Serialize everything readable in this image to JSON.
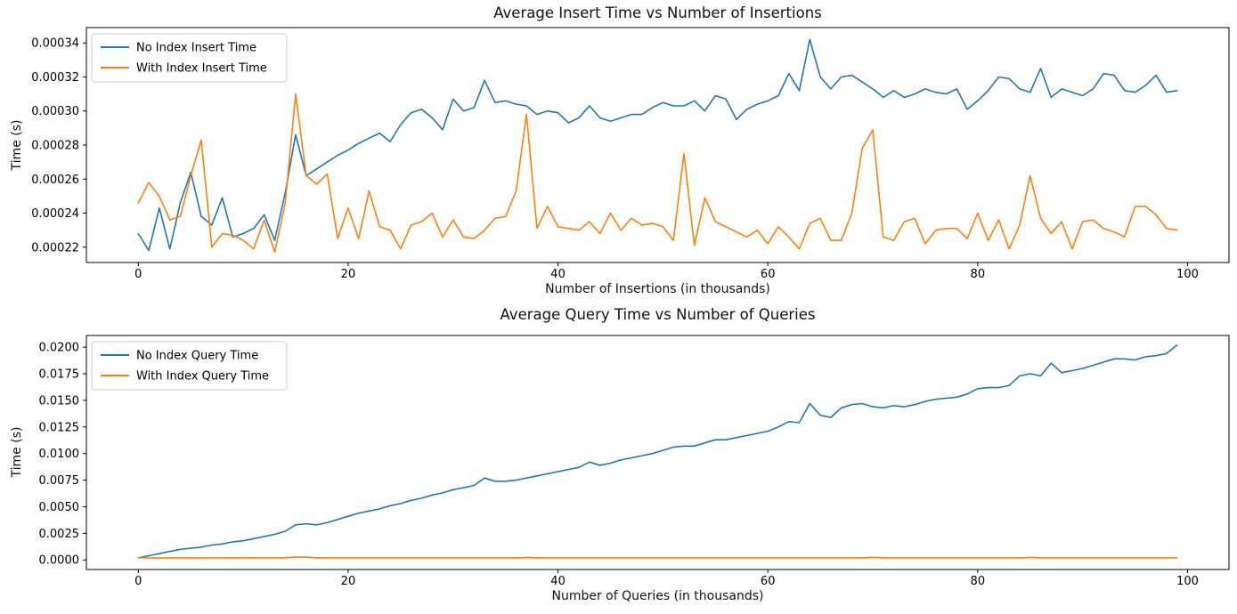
{
  "figure": {
    "background": "#ffffff"
  },
  "colors": {
    "no_index": "#1f77b4",
    "with_index": "#ff7f0e",
    "axis": "#000000",
    "legend_border": "#cccccc",
    "legend_bg": "#ffffff"
  },
  "chart_data": [
    {
      "type": "line",
      "title": "Average Insert Time vs Number of Insertions",
      "xlabel": "Number of Insertions (in thousands)",
      "ylabel": "Time (s)",
      "grid": false,
      "legend_position": "upper left",
      "xlim": [
        -4.95,
        103.95
      ],
      "ylim": [
        0.000211,
        0.000349
      ],
      "xticks": [
        0,
        20,
        40,
        60,
        80,
        100
      ],
      "xtick_labels": [
        "0",
        "20",
        "40",
        "60",
        "80",
        "100"
      ],
      "yticks": [
        0.00022,
        0.00024,
        0.00026,
        0.00028,
        0.0003,
        0.00032,
        0.00034
      ],
      "ytick_labels": [
        "0.00022",
        "0.00024",
        "0.00026",
        "0.00028",
        "0.00030",
        "0.00032",
        "0.00034"
      ],
      "x_start": 0,
      "x_step": 1,
      "series": [
        {
          "name": "No Index Insert Time",
          "color": "#1f77b4",
          "values": [
            0.000228,
            0.000218,
            0.000243,
            0.000219,
            0.000246,
            0.000264,
            0.000238,
            0.000233,
            0.000249,
            0.000226,
            0.000228,
            0.000231,
            0.000239,
            0.000224,
            0.000252,
            0.000286,
            0.000262,
            0.000266,
            0.00027,
            0.000274,
            0.000277,
            0.000281,
            0.000284,
            0.000287,
            0.000282,
            0.000292,
            0.000299,
            0.000301,
            0.000296,
            0.000289,
            0.000307,
            0.0003,
            0.000302,
            0.000318,
            0.000305,
            0.000306,
            0.000304,
            0.000303,
            0.000298,
            0.0003,
            0.000299,
            0.000293,
            0.000296,
            0.000303,
            0.000296,
            0.000294,
            0.000296,
            0.000298,
            0.000298,
            0.000302,
            0.000305,
            0.000303,
            0.000303,
            0.000306,
            0.0003,
            0.000309,
            0.000307,
            0.000295,
            0.000301,
            0.000304,
            0.000306,
            0.000309,
            0.000322,
            0.000312,
            0.000342,
            0.00032,
            0.000313,
            0.00032,
            0.000321,
            0.000317,
            0.000313,
            0.000308,
            0.000312,
            0.000308,
            0.00031,
            0.000313,
            0.000311,
            0.00031,
            0.000313,
            0.000301,
            0.000306,
            0.000312,
            0.00032,
            0.000319,
            0.000313,
            0.000311,
            0.000325,
            0.000308,
            0.000313,
            0.000311,
            0.000309,
            0.000313,
            0.000322,
            0.000321,
            0.000312,
            0.000311,
            0.000315,
            0.000321,
            0.000311,
            0.000312
          ]
        },
        {
          "name": "With Index Insert Time",
          "color": "#ff7f0e",
          "values": [
            0.000246,
            0.000258,
            0.00025,
            0.000236,
            0.000238,
            0.000262,
            0.000283,
            0.00022,
            0.000228,
            0.000227,
            0.000224,
            0.000219,
            0.000236,
            0.000217,
            0.000246,
            0.00031,
            0.000262,
            0.000257,
            0.000263,
            0.000225,
            0.000243,
            0.000225,
            0.000253,
            0.000232,
            0.00023,
            0.000219,
            0.000233,
            0.000235,
            0.00024,
            0.000226,
            0.000236,
            0.000226,
            0.000225,
            0.00023,
            0.000237,
            0.000238,
            0.000253,
            0.000298,
            0.000231,
            0.000244,
            0.000232,
            0.000231,
            0.00023,
            0.000235,
            0.000228,
            0.00024,
            0.00023,
            0.000237,
            0.000233,
            0.000234,
            0.000232,
            0.000224,
            0.000275,
            0.000221,
            0.000249,
            0.000235,
            0.000232,
            0.000229,
            0.000226,
            0.00023,
            0.000222,
            0.000232,
            0.000226,
            0.000219,
            0.000234,
            0.000237,
            0.000224,
            0.000224,
            0.00024,
            0.000278,
            0.000289,
            0.000226,
            0.000224,
            0.000235,
            0.000237,
            0.000222,
            0.00023,
            0.000231,
            0.000231,
            0.000225,
            0.00024,
            0.000224,
            0.000236,
            0.000219,
            0.000233,
            0.000262,
            0.000237,
            0.000228,
            0.000235,
            0.000219,
            0.000235,
            0.000236,
            0.000231,
            0.000229,
            0.000226,
            0.000244,
            0.000244,
            0.000239,
            0.000231,
            0.00023
          ]
        }
      ]
    },
    {
      "type": "line",
      "title": "Average Query Time vs Number of Queries",
      "xlabel": "Number of Queries (in thousands)",
      "ylabel": "Time (s)",
      "grid": false,
      "legend_position": "upper left",
      "xlim": [
        -4.95,
        103.95
      ],
      "ylim": [
        -0.0009,
        0.0211
      ],
      "xticks": [
        0,
        20,
        40,
        60,
        80,
        100
      ],
      "xtick_labels": [
        "0",
        "20",
        "40",
        "60",
        "80",
        "100"
      ],
      "yticks": [
        0.0,
        0.0025,
        0.005,
        0.0075,
        0.01,
        0.0125,
        0.015,
        0.0175,
        0.02
      ],
      "ytick_labels": [
        "0.0000",
        "0.0025",
        "0.0050",
        "0.0075",
        "0.0100",
        "0.0125",
        "0.0150",
        "0.0175",
        "0.0200"
      ],
      "x_start": 0,
      "x_step": 1,
      "series": [
        {
          "name": "No Index Query Time",
          "color": "#1f77b4",
          "values": [
            0.0002,
            0.0004,
            0.0006,
            0.0008,
            0.001,
            0.0011,
            0.0012,
            0.0014,
            0.0015,
            0.0017,
            0.0018,
            0.002,
            0.0022,
            0.0024,
            0.0027,
            0.0033,
            0.0034,
            0.0033,
            0.0035,
            0.0038,
            0.0041,
            0.0044,
            0.0046,
            0.0048,
            0.0051,
            0.0053,
            0.0056,
            0.0058,
            0.0061,
            0.0063,
            0.0066,
            0.0068,
            0.007,
            0.0077,
            0.0074,
            0.0074,
            0.0075,
            0.0077,
            0.0079,
            0.0081,
            0.0083,
            0.0085,
            0.0087,
            0.0092,
            0.0089,
            0.0091,
            0.0094,
            0.0096,
            0.0098,
            0.01,
            0.0103,
            0.0106,
            0.0107,
            0.0107,
            0.011,
            0.0113,
            0.0113,
            0.0115,
            0.0117,
            0.0119,
            0.0121,
            0.0125,
            0.013,
            0.0129,
            0.0147,
            0.0136,
            0.0134,
            0.0143,
            0.0146,
            0.0147,
            0.0144,
            0.0143,
            0.0145,
            0.0144,
            0.0146,
            0.0149,
            0.0151,
            0.0152,
            0.0153,
            0.0156,
            0.0161,
            0.0162,
            0.0162,
            0.0164,
            0.0173,
            0.0175,
            0.0173,
            0.0185,
            0.0176,
            0.0178,
            0.018,
            0.0183,
            0.0186,
            0.0189,
            0.0189,
            0.0188,
            0.0191,
            0.0192,
            0.0194,
            0.0202
          ]
        },
        {
          "name": "With Index Query Time",
          "color": "#ff7f0e",
          "values": [
            0.0002,
            0.0002,
            0.0002,
            0.0002,
            0.0002,
            0.0002,
            0.0002,
            0.0002,
            0.0002,
            0.0002,
            0.0002,
            0.0002,
            0.0002,
            0.0002,
            0.0002,
            0.00028,
            0.00026,
            0.0002,
            0.0002,
            0.0002,
            0.0002,
            0.0002,
            0.0002,
            0.0002,
            0.0002,
            0.0002,
            0.0002,
            0.0002,
            0.0002,
            0.0002,
            0.0002,
            0.0002,
            0.0002,
            0.0002,
            0.0002,
            0.0002,
            0.0002,
            0.00024,
            0.0002,
            0.0002,
            0.0002,
            0.0002,
            0.0002,
            0.0002,
            0.0002,
            0.0002,
            0.0002,
            0.0002,
            0.0002,
            0.0002,
            0.0002,
            0.0002,
            0.0002,
            0.0002,
            0.0002,
            0.0002,
            0.0002,
            0.0002,
            0.0002,
            0.0002,
            0.0002,
            0.0002,
            0.0002,
            0.0002,
            0.0002,
            0.0002,
            0.0002,
            0.0002,
            0.0002,
            0.0002,
            0.00025,
            0.0002,
            0.0002,
            0.0002,
            0.0002,
            0.0002,
            0.0002,
            0.0002,
            0.0002,
            0.0002,
            0.0002,
            0.0002,
            0.0002,
            0.0002,
            0.0002,
            0.00024,
            0.0002,
            0.0002,
            0.0002,
            0.0002,
            0.0002,
            0.0002,
            0.0002,
            0.0002,
            0.0002,
            0.0002,
            0.0002,
            0.0002,
            0.0002,
            0.0002
          ]
        }
      ]
    }
  ]
}
